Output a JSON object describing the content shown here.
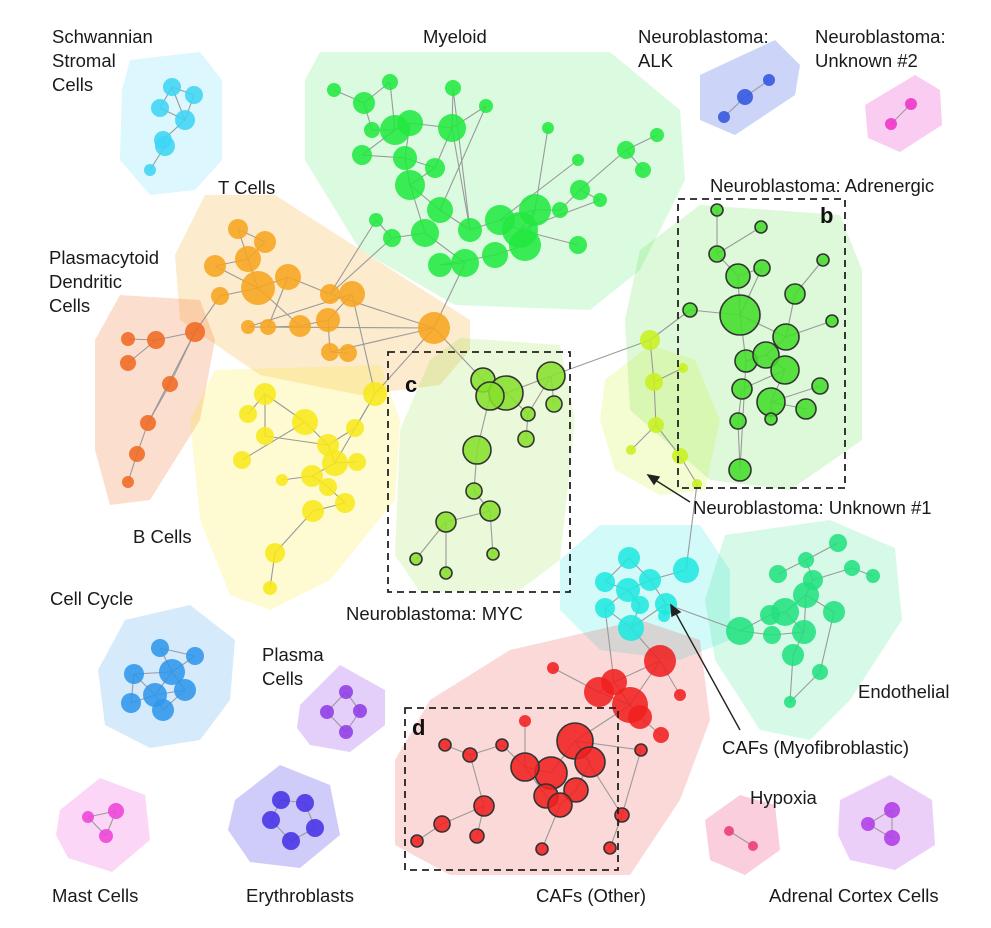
{
  "colors": {
    "schwannian": "#3dd5f5",
    "myeloid": "#22e840",
    "alk": "#3355e0",
    "unknown2": "#ee33c8",
    "tcells": "#f7a520",
    "pdc": "#f06a22",
    "bcells": "#f8e81a",
    "myc": "#86e02c",
    "adrenergic": "#44dd2a",
    "unknown1": "#c8f020",
    "cafs_myo": "#1fe8df",
    "endothelial": "#22e07e",
    "cafs_other": "#f02020",
    "cell_cycle": "#2f96ea",
    "plasma": "#8f3ee6",
    "erythro": "#4532e6",
    "mast": "#ee44d8",
    "hypoxia": "#ee3a78",
    "adrenal": "#b23ee6"
  },
  "labels": {
    "schwannian": [
      "Schwannian",
      "Stromal",
      "Cells"
    ],
    "myeloid": "Myeloid",
    "alk": [
      "Neuroblastoma:",
      "ALK"
    ],
    "unknown2": [
      "Neuroblastoma:",
      "Unknown #2"
    ],
    "adrenergic": "Neuroblastoma: Adrenergic",
    "tcells": "T Cells",
    "pdc": [
      "Plasmacytoid",
      "Dendritic",
      "Cells"
    ],
    "bcells": "B Cells",
    "unknown1": "Neuroblastoma: Unknown #1",
    "myc": "Neuroblastoma: MYC",
    "cell_cycle": "Cell Cycle",
    "plasma": [
      "Plasma",
      "Cells"
    ],
    "endothelial": "Endothelial",
    "cafs_myo": "CAFs (Myofibroblastic)",
    "hypoxia": "Hypoxia",
    "mast": "Mast Cells",
    "erythro": "Erythroblasts",
    "cafs_other": "CAFs (Other)",
    "adrenal": "Adrenal Cortex Cells"
  },
  "panels": [
    "b",
    "c",
    "d"
  ]
}
